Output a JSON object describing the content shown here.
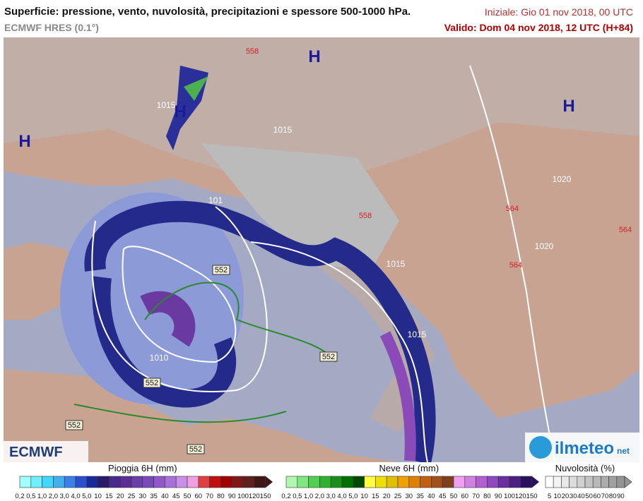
{
  "header": {
    "title": "Superficie: pressione, vento, nuvolosità, precipitazioni e spessore 500-1000 hPa.",
    "model": "ECMWF HRES (0.1°)",
    "initial": "Iniziale: Gio 01 nov 2018, 00 UTC",
    "valid": "Valido: Dom 04 nov 2018, 12 UTC (H+84)"
  },
  "map": {
    "pressure_centers": [
      "H",
      "H",
      "H",
      "H"
    ],
    "isobar_labels": [
      "1015",
      "1015",
      "1020",
      "1020",
      "1010",
      "1015",
      "1015",
      "101"
    ],
    "thickness_labels": [
      "558",
      "558",
      "564",
      "564",
      "564",
      "552",
      "552",
      "552",
      "552",
      "552"
    ],
    "logos": [
      "ECMWF",
      "ilmeteo",
      "net"
    ]
  },
  "legend": [
    {
      "title": "Pioggia 6H (mm)",
      "labels": [
        "0,2",
        "0,5",
        "1,0",
        "2,0",
        "3,0",
        "4,0",
        "5,0",
        "10",
        "15",
        "20",
        "25",
        "30",
        "35",
        "40",
        "45",
        "50",
        "60",
        "70",
        "80",
        "90",
        "100",
        "120",
        "150"
      ]
    },
    {
      "title": "Neve 6H (mm)",
      "labels": [
        "0,2",
        "0,5",
        "1,0",
        "2,0",
        "3,0",
        "4,0",
        "5,0",
        "10",
        "15",
        "20",
        "25",
        "30",
        "35",
        "40",
        "45",
        "50",
        "60",
        "70",
        "80",
        "90",
        "100",
        "120",
        "150"
      ]
    },
    {
      "title": "Nuvolosità (%)",
      "labels": [
        "5",
        "10",
        "20",
        "30",
        "40",
        "50",
        "60",
        "70",
        "80",
        "90"
      ]
    }
  ]
}
